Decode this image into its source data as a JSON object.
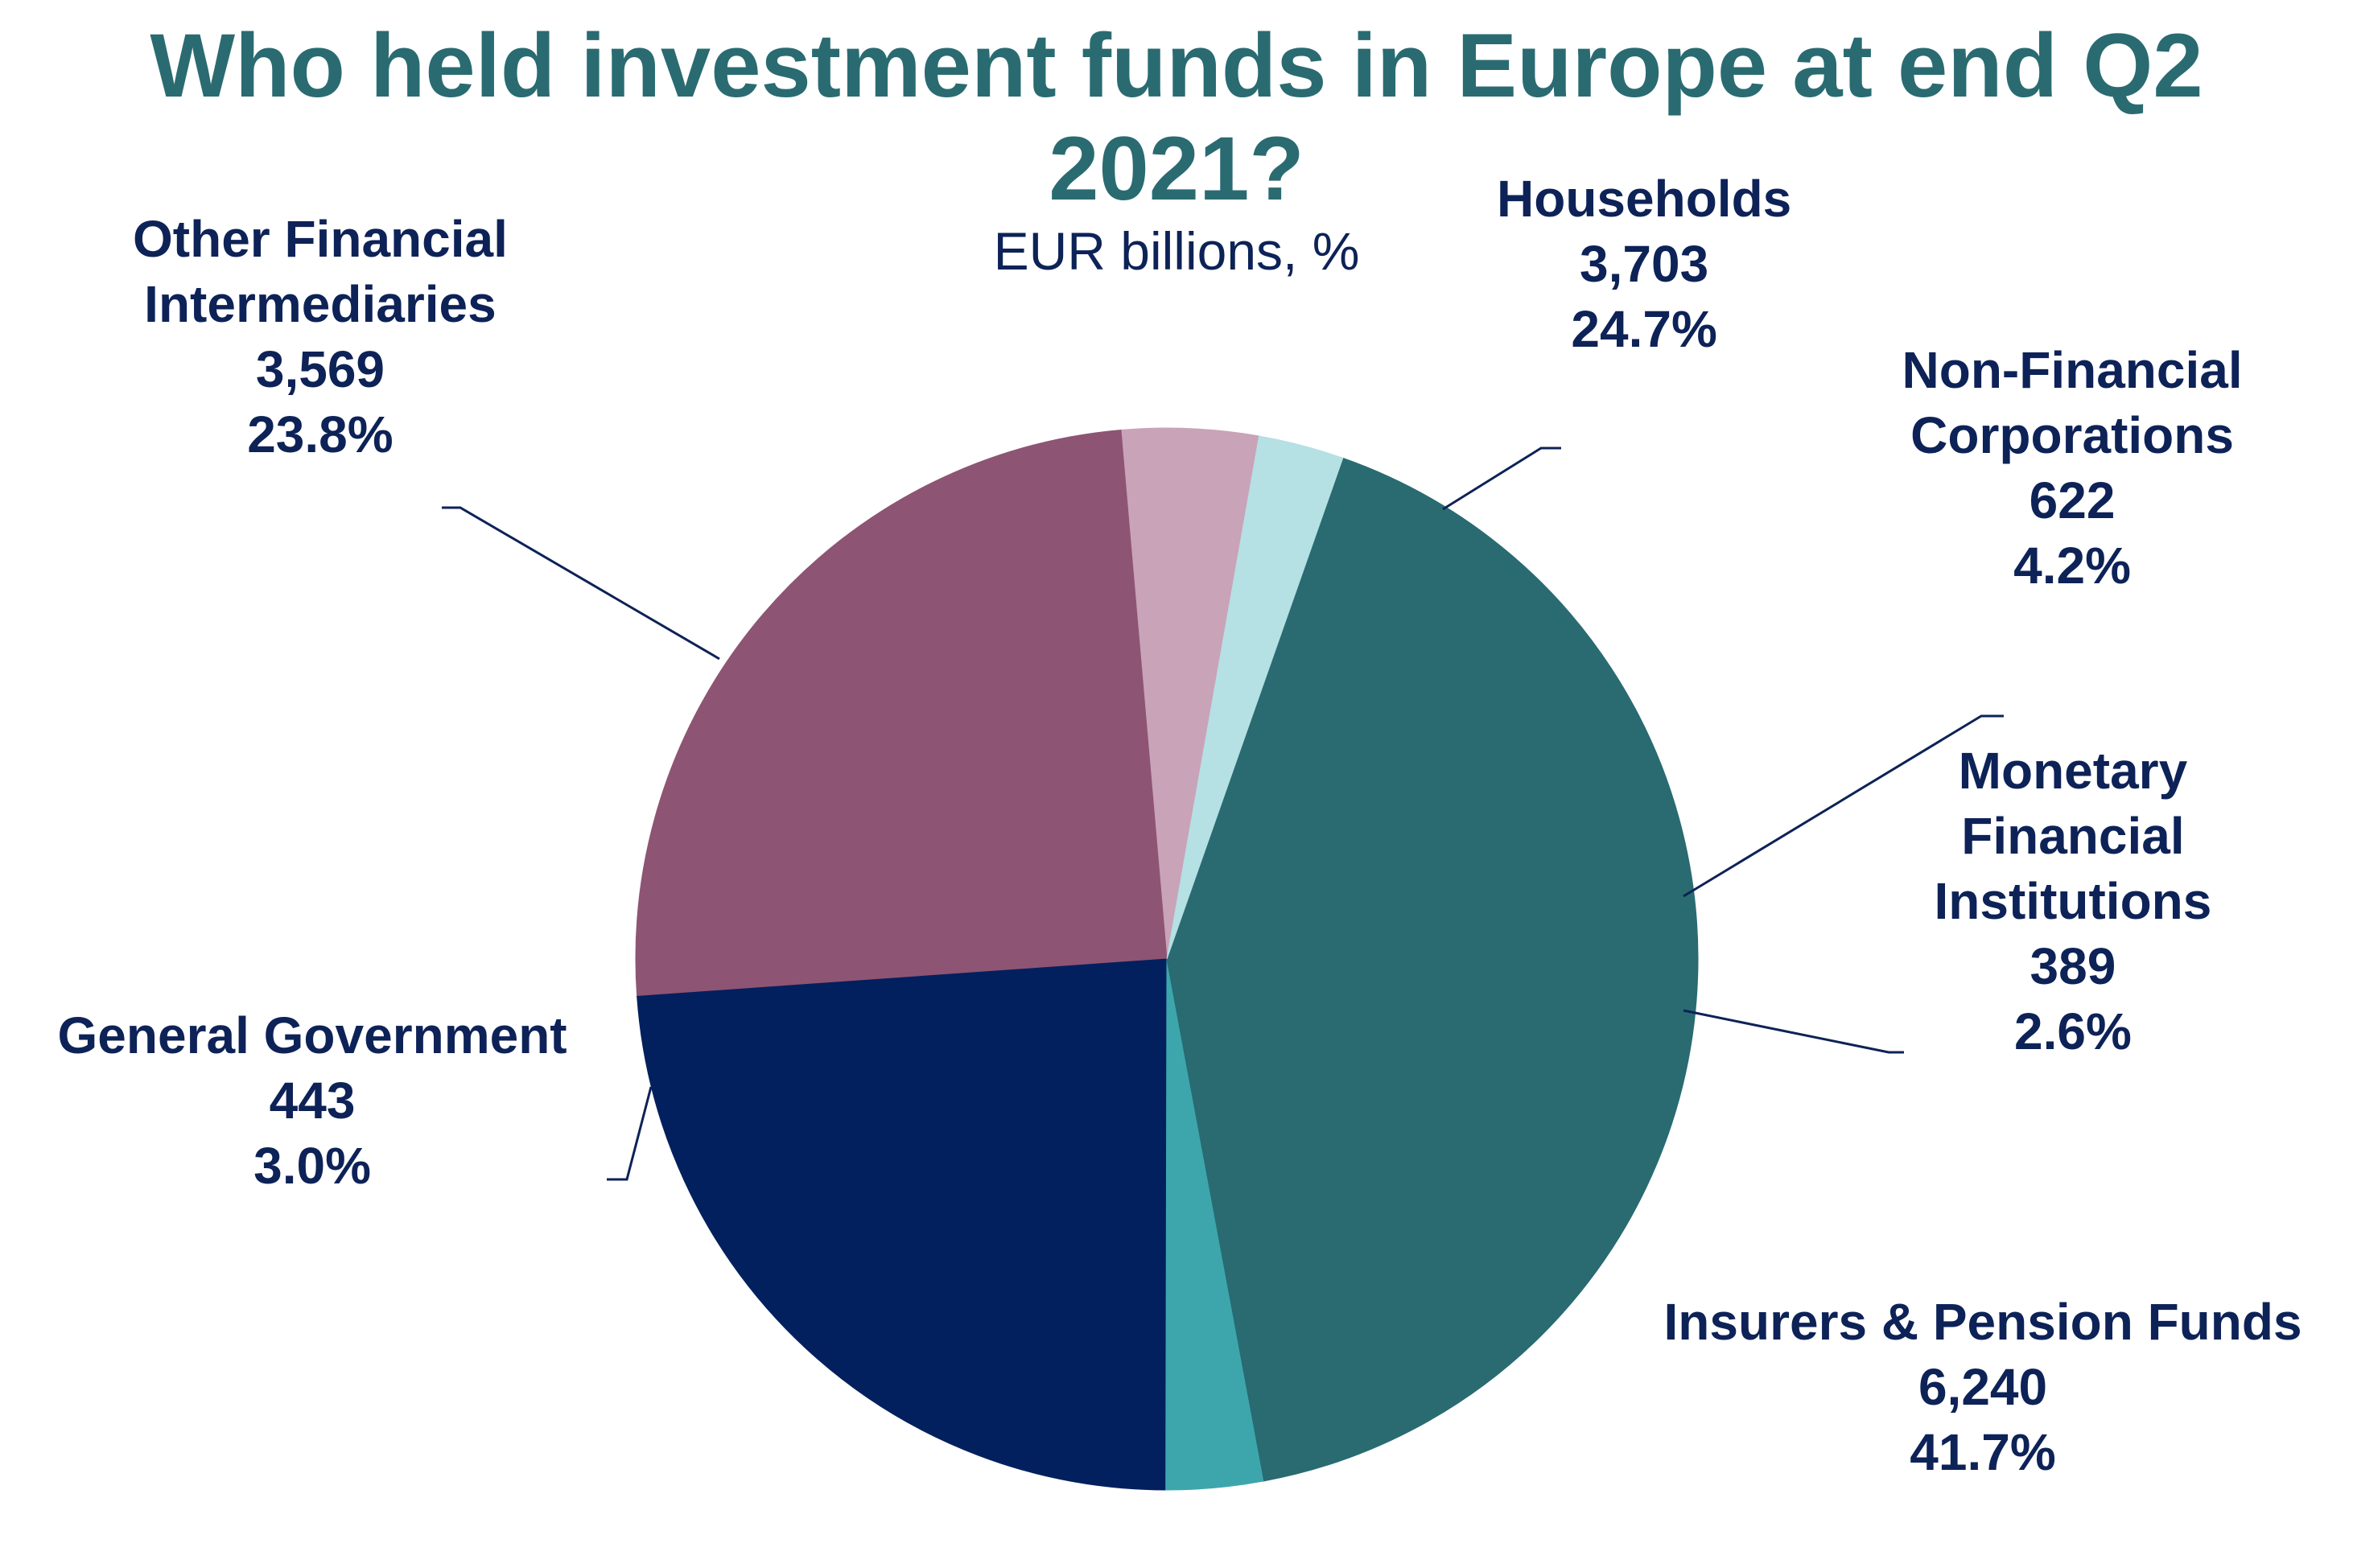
{
  "title_lines": [
    "Who held investment funds in Europe at end Q2",
    "2021?"
  ],
  "subtitle": "EUR billions, %",
  "chart_data": {
    "type": "pie",
    "title": "Who held investment funds in Europe at end Q2 2021?",
    "subtitle": "EUR billions, %",
    "start_angle_deg": 80,
    "direction": "counterclockwise",
    "slices": [
      {
        "label": "Non-Financial Corporations",
        "label_lines": [
          "Non-Financial",
          "Corporations"
        ],
        "value": 622,
        "value_text": "622",
        "percent": 4.2,
        "percent_text": "4.2%",
        "color": "#c9a3b8"
      },
      {
        "label": "Households",
        "label_lines": [
          "Households"
        ],
        "value": 3703,
        "value_text": "3,703",
        "percent": 24.7,
        "percent_text": "24.7%",
        "color": "#8e5473"
      },
      {
        "label": "Other Financial Intermediaries",
        "label_lines": [
          "Other Financial",
          "Intermediaries"
        ],
        "value": 3569,
        "value_text": "3,569",
        "percent": 23.8,
        "percent_text": "23.8%",
        "color": "#03205e"
      },
      {
        "label": "General Government",
        "label_lines": [
          "General Government"
        ],
        "value": 443,
        "value_text": "443",
        "percent": 3.0,
        "percent_text": "3.0%",
        "color": "#3da6ad"
      },
      {
        "label": "Insurers & Pension Funds",
        "label_lines": [
          "Insurers & Pension Funds"
        ],
        "value": 6240,
        "value_text": "6,240",
        "percent": 41.7,
        "percent_text": "41.7%",
        "color": "#296b71"
      },
      {
        "label": "Monetary Financial Institutions",
        "label_lines": [
          "Monetary",
          "Financial",
          "Institutions"
        ],
        "value": 389,
        "value_text": "389",
        "percent": 2.6,
        "percent_text": "2.6%",
        "color": "#b5e0e4"
      }
    ]
  }
}
